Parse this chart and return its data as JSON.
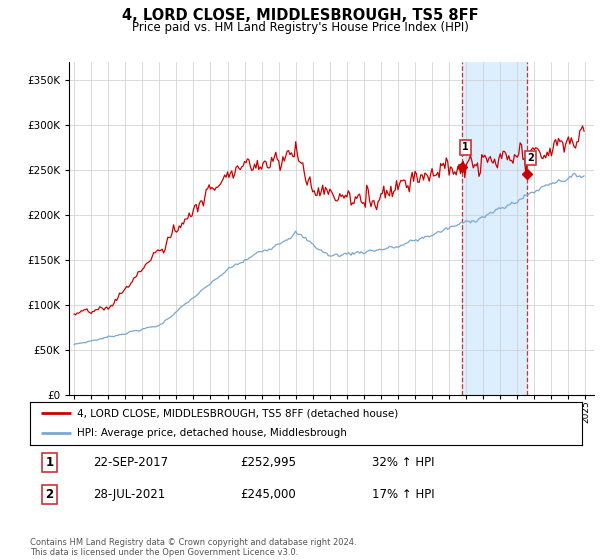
{
  "title": "4, LORD CLOSE, MIDDLESBROUGH, TS5 8FF",
  "subtitle": "Price paid vs. HM Land Registry's House Price Index (HPI)",
  "ylim": [
    0,
    370000
  ],
  "yticks": [
    0,
    50000,
    100000,
    150000,
    200000,
    250000,
    300000,
    350000
  ],
  "sale1_date": "22-SEP-2017",
  "sale1_price": 252995,
  "sale1_hpi": "32% ↑ HPI",
  "sale2_date": "28-JUL-2021",
  "sale2_price": 245000,
  "sale2_hpi": "17% ↑ HPI",
  "legend_line1": "4, LORD CLOSE, MIDDLESBROUGH, TS5 8FF (detached house)",
  "legend_line2": "HPI: Average price, detached house, Middlesbrough",
  "footer": "Contains HM Land Registry data © Crown copyright and database right 2024.\nThis data is licensed under the Open Government Licence v3.0.",
  "red_color": "#cc0000",
  "blue_color": "#7aa8d2",
  "highlight_bg": "#ddeeff",
  "grid_color": "#cccccc",
  "sale1_yr": 2017.75,
  "sale2_yr": 2021.583
}
